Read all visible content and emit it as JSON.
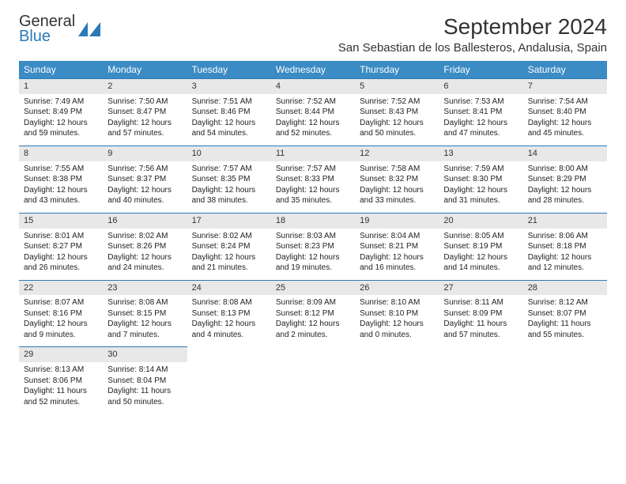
{
  "logo": {
    "word1": "General",
    "word2": "Blue"
  },
  "title": "September 2024",
  "location": "San Sebastian de los Ballesteros, Andalusia, Spain",
  "colors": {
    "header_bg": "#3b8bc4",
    "header_text": "#ffffff",
    "daynum_bg": "#e8e8e8",
    "daynum_border": "#2a7ab8",
    "text": "#222222",
    "logo_blue": "#2a7ab8"
  },
  "weekdays": [
    "Sunday",
    "Monday",
    "Tuesday",
    "Wednesday",
    "Thursday",
    "Friday",
    "Saturday"
  ],
  "grid": {
    "rows": 5,
    "cols": 7
  },
  "days": [
    {
      "n": "1",
      "sunrise": "7:49 AM",
      "sunset": "8:49 PM",
      "day_h": "12",
      "day_m": "59"
    },
    {
      "n": "2",
      "sunrise": "7:50 AM",
      "sunset": "8:47 PM",
      "day_h": "12",
      "day_m": "57"
    },
    {
      "n": "3",
      "sunrise": "7:51 AM",
      "sunset": "8:46 PM",
      "day_h": "12",
      "day_m": "54"
    },
    {
      "n": "4",
      "sunrise": "7:52 AM",
      "sunset": "8:44 PM",
      "day_h": "12",
      "day_m": "52"
    },
    {
      "n": "5",
      "sunrise": "7:52 AM",
      "sunset": "8:43 PM",
      "day_h": "12",
      "day_m": "50"
    },
    {
      "n": "6",
      "sunrise": "7:53 AM",
      "sunset": "8:41 PM",
      "day_h": "12",
      "day_m": "47"
    },
    {
      "n": "7",
      "sunrise": "7:54 AM",
      "sunset": "8:40 PM",
      "day_h": "12",
      "day_m": "45"
    },
    {
      "n": "8",
      "sunrise": "7:55 AM",
      "sunset": "8:38 PM",
      "day_h": "12",
      "day_m": "43"
    },
    {
      "n": "9",
      "sunrise": "7:56 AM",
      "sunset": "8:37 PM",
      "day_h": "12",
      "day_m": "40"
    },
    {
      "n": "10",
      "sunrise": "7:57 AM",
      "sunset": "8:35 PM",
      "day_h": "12",
      "day_m": "38"
    },
    {
      "n": "11",
      "sunrise": "7:57 AM",
      "sunset": "8:33 PM",
      "day_h": "12",
      "day_m": "35"
    },
    {
      "n": "12",
      "sunrise": "7:58 AM",
      "sunset": "8:32 PM",
      "day_h": "12",
      "day_m": "33"
    },
    {
      "n": "13",
      "sunrise": "7:59 AM",
      "sunset": "8:30 PM",
      "day_h": "12",
      "day_m": "31"
    },
    {
      "n": "14",
      "sunrise": "8:00 AM",
      "sunset": "8:29 PM",
      "day_h": "12",
      "day_m": "28"
    },
    {
      "n": "15",
      "sunrise": "8:01 AM",
      "sunset": "8:27 PM",
      "day_h": "12",
      "day_m": "26"
    },
    {
      "n": "16",
      "sunrise": "8:02 AM",
      "sunset": "8:26 PM",
      "day_h": "12",
      "day_m": "24"
    },
    {
      "n": "17",
      "sunrise": "8:02 AM",
      "sunset": "8:24 PM",
      "day_h": "12",
      "day_m": "21"
    },
    {
      "n": "18",
      "sunrise": "8:03 AM",
      "sunset": "8:23 PM",
      "day_h": "12",
      "day_m": "19"
    },
    {
      "n": "19",
      "sunrise": "8:04 AM",
      "sunset": "8:21 PM",
      "day_h": "12",
      "day_m": "16"
    },
    {
      "n": "20",
      "sunrise": "8:05 AM",
      "sunset": "8:19 PM",
      "day_h": "12",
      "day_m": "14"
    },
    {
      "n": "21",
      "sunrise": "8:06 AM",
      "sunset": "8:18 PM",
      "day_h": "12",
      "day_m": "12"
    },
    {
      "n": "22",
      "sunrise": "8:07 AM",
      "sunset": "8:16 PM",
      "day_h": "12",
      "day_m": "9"
    },
    {
      "n": "23",
      "sunrise": "8:08 AM",
      "sunset": "8:15 PM",
      "day_h": "12",
      "day_m": "7"
    },
    {
      "n": "24",
      "sunrise": "8:08 AM",
      "sunset": "8:13 PM",
      "day_h": "12",
      "day_m": "4"
    },
    {
      "n": "25",
      "sunrise": "8:09 AM",
      "sunset": "8:12 PM",
      "day_h": "12",
      "day_m": "2"
    },
    {
      "n": "26",
      "sunrise": "8:10 AM",
      "sunset": "8:10 PM",
      "day_h": "12",
      "day_m": "0"
    },
    {
      "n": "27",
      "sunrise": "8:11 AM",
      "sunset": "8:09 PM",
      "day_h": "11",
      "day_m": "57"
    },
    {
      "n": "28",
      "sunrise": "8:12 AM",
      "sunset": "8:07 PM",
      "day_h": "11",
      "day_m": "55"
    },
    {
      "n": "29",
      "sunrise": "8:13 AM",
      "sunset": "8:06 PM",
      "day_h": "11",
      "day_m": "52"
    },
    {
      "n": "30",
      "sunrise": "8:14 AM",
      "sunset": "8:04 PM",
      "day_h": "11",
      "day_m": "50"
    }
  ]
}
